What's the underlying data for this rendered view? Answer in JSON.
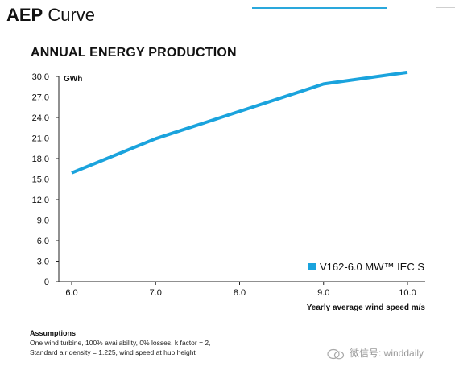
{
  "header": {
    "title_bold": "AEP",
    "title_rest": " Curve"
  },
  "chart_data": {
    "type": "line",
    "title": "ANNUAL ENERGY PRODUCTION",
    "ylabel": "GWh",
    "xlabel": "Yearly average wind speed m/s",
    "ylim": [
      0,
      30
    ],
    "xlim": [
      6,
      10
    ],
    "yticks": [
      0,
      3,
      6,
      9,
      12,
      15,
      18,
      21,
      24,
      27,
      30
    ],
    "ytick_labels": [
      "0",
      "3.0",
      "6.0",
      "9.0",
      "12.0",
      "15.0",
      "18.0",
      "21.0",
      "24.0",
      "27.0",
      "30.0"
    ],
    "xticks": [
      6,
      7,
      8,
      9,
      10
    ],
    "xtick_labels": [
      "6.0",
      "7.0",
      "8.0",
      "9.0",
      "10.0"
    ],
    "grid": false,
    "legend_position": "bottom-right",
    "series": [
      {
        "name": "V162-6.0 MW™ IEC S",
        "color": "#1aa3dd",
        "x": [
          6,
          7,
          8,
          9,
          10
        ],
        "y": [
          15.9,
          20.9,
          24.9,
          28.9,
          30.6
        ]
      }
    ]
  },
  "assumptions": {
    "title": "Assumptions",
    "line1": "One wind turbine, 100% availability, 0% losses, k factor = 2,",
    "line2": "Standard air density = 1.225, wind speed at hub height"
  },
  "watermark": {
    "text": "微信号: winddaily",
    "icon": "wechat-icon"
  }
}
